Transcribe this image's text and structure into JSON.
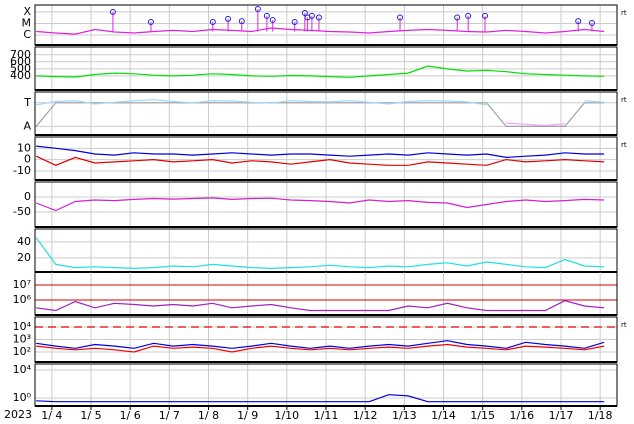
{
  "chart_data": {
    "type": "panels",
    "xlabel": "2023",
    "x": [
      3.6,
      4.1,
      4.6,
      5.1,
      5.6,
      6.1,
      6.6,
      7.1,
      7.6,
      8.1,
      8.6,
      9.1,
      9.6,
      10.1,
      10.6,
      11.1,
      11.6,
      12.1,
      12.6,
      13.1,
      13.6,
      14.1,
      14.6,
      15.1,
      15.6,
      16.1,
      16.6,
      17.1,
      17.6,
      18.1
    ],
    "xlim": [
      3.57,
      18.43
    ],
    "xticks": [
      {
        "value": 4,
        "label": "1/ 4"
      },
      {
        "value": 5,
        "label": "1/ 5"
      },
      {
        "value": 6,
        "label": "1/ 6"
      },
      {
        "value": 7,
        "label": "1/ 7"
      },
      {
        "value": 8,
        "label": "1/ 8"
      },
      {
        "value": 9,
        "label": "1/ 9"
      },
      {
        "value": 10,
        "label": "1/10"
      },
      {
        "value": 11,
        "label": "1/11"
      },
      {
        "value": 12,
        "label": "1/12"
      },
      {
        "value": 13,
        "label": "1/13"
      },
      {
        "value": 14,
        "label": "1/14"
      },
      {
        "value": 15,
        "label": "1/15"
      },
      {
        "value": 16,
        "label": "1/16"
      },
      {
        "value": 17,
        "label": "1/17"
      },
      {
        "value": 18,
        "label": "1/18"
      }
    ],
    "grid": true,
    "panels": [
      {
        "type": "line",
        "log": true,
        "ylim": [
          1.35e-07,
          0.0004
        ],
        "yticks": [
          {
            "value": 0.0001,
            "label": "X"
          },
          {
            "value": 1e-05,
            "label": "M"
          },
          {
            "value": 1e-06,
            "label": "C"
          }
        ],
        "note": "rt",
        "series": [
          {
            "color": "#e020e0",
            "values": [
              2e-06,
              1.5e-06,
              1.2e-06,
              3e-06,
              1.8e-06,
              1.5e-06,
              2e-06,
              2.5e-06,
              2e-06,
              3e-06,
              2.5e-06,
              2e-06,
              4e-06,
              3e-06,
              2.5e-06,
              2e-06,
              1.8e-06,
              1.5e-06,
              2e-06,
              2.5e-06,
              3e-06,
              2.5e-06,
              2e-06,
              1.8e-06,
              2.5e-06,
              2e-06,
              1.5e-06,
              2e-06,
              3e-06,
              2e-06
            ]
          }
        ],
        "events": {
          "color": "#2020e0",
          "x": [
            5.56,
            6.53,
            8.11,
            8.5,
            8.85,
            9.26,
            9.49,
            9.64,
            10.2,
            10.46,
            10.53,
            10.64,
            10.82,
            12.89,
            14.35,
            14.63,
            15.06,
            17.44,
            17.79
          ],
          "values": [
            0.0001,
            1.35e-05,
            1.35e-05,
            2.5e-05,
            1.6e-05,
            0.00018,
            4.5e-05,
            2e-05,
            1.35e-05,
            8e-05,
            3.3e-05,
            4.5e-05,
            3.3e-05,
            3.3e-05,
            3.3e-05,
            4.5e-05,
            4.5e-05,
            1.6e-05,
            1.1e-05
          ]
        }
      },
      {
        "type": "line",
        "log": false,
        "ylim": [
          200,
          810
        ],
        "yticks": [
          400,
          500,
          600,
          700
        ],
        "series": [
          {
            "color": "#00e000",
            "values": [
              400,
              390,
              385,
              420,
              440,
              430,
              410,
              400,
              410,
              430,
              420,
              400,
              395,
              405,
              400,
              390,
              380,
              400,
              420,
              440,
              540,
              500,
              470,
              480,
              460,
              430,
              420,
              410,
              400,
              395
            ]
          }
        ]
      },
      {
        "type": "line",
        "log": false,
        "ylim": [
          0,
          1
        ],
        "yticks": [
          {
            "value": 0.75,
            "label": "T"
          },
          {
            "value": 0.2,
            "label": "A"
          }
        ],
        "note": "rt",
        "series": [
          {
            "color": "#a0a0a0",
            "values": [
              0.2,
              0.75,
              0.75,
              0.75,
              0.75,
              0.75,
              0.75,
              0.75,
              0.75,
              0.75,
              0.75,
              0.75,
              0.75,
              0.75,
              0.75,
              0.75,
              0.75,
              0.75,
              0.75,
              0.75,
              0.75,
              0.75,
              0.75,
              0.75,
              0.2,
              0.2,
              0.2,
              0.2,
              0.75,
              0.75
            ]
          },
          {
            "color": "#a0d8ff",
            "values": [
              0.7,
              0.78,
              0.8,
              0.72,
              0.76,
              0.8,
              0.82,
              0.78,
              0.75,
              0.8,
              0.79,
              0.76,
              0.74,
              0.8,
              0.78,
              0.77,
              0.8,
              0.76,
              0.72,
              0.78,
              0.8,
              0.79,
              0.77,
              0.7,
              null,
              null,
              null,
              null,
              0.8,
              0.76
            ]
          },
          {
            "color": "#f0a0f0",
            "values": [
              0.25,
              null,
              null,
              null,
              null,
              null,
              null,
              null,
              null,
              null,
              null,
              null,
              null,
              null,
              null,
              null,
              null,
              null,
              null,
              null,
              null,
              null,
              null,
              null,
              0.28,
              0.25,
              0.22,
              0.26,
              null,
              0.25
            ]
          }
        ]
      },
      {
        "type": "line",
        "log": false,
        "ylim": [
          -18,
          20
        ],
        "yticks": [
          10,
          0,
          -10
        ],
        "note": "rt",
        "series": [
          {
            "color": "#0000e0",
            "values": [
              12,
              10,
              8,
              5,
              4,
              6,
              5,
              5,
              4,
              5,
              6,
              5,
              4,
              5,
              5,
              4,
              3,
              4,
              5,
              4,
              6,
              5,
              4,
              5,
              2,
              3,
              4,
              6,
              5,
              5
            ]
          },
          {
            "color": "#e00000",
            "values": [
              3,
              -5,
              2,
              -3,
              -2,
              -1,
              0,
              -2,
              -1,
              0,
              -3,
              -1,
              -2,
              -4,
              -2,
              0,
              -3,
              -4,
              -5,
              -5,
              -2,
              -3,
              -4,
              -5,
              0,
              -2,
              -1,
              0,
              -1,
              -2
            ]
          }
        ]
      },
      {
        "type": "line",
        "log": false,
        "ylim": [
          -100,
          50
        ],
        "yticks": [
          0,
          -50
        ],
        "series": [
          {
            "color": "#d020d0",
            "values": [
              -20,
              -45,
              -15,
              -10,
              -12,
              -8,
              -5,
              -7,
              -5,
              -3,
              -8,
              -5,
              -4,
              -10,
              -12,
              -15,
              -20,
              -10,
              -15,
              -12,
              -18,
              -20,
              -35,
              -25,
              -15,
              -10,
              -15,
              -12,
              -8,
              -10
            ]
          }
        ]
      },
      {
        "type": "line",
        "log": false,
        "ylim": [
          2.5,
          56
        ],
        "yticks": [
          40,
          20
        ],
        "series": [
          {
            "color": "#20e0e0",
            "values": [
              45,
              12,
              8,
              9,
              8,
              7,
              8,
              10,
              9,
              12,
              10,
              8,
              7,
              8,
              9,
              11,
              9,
              8,
              10,
              9,
              12,
              14,
              10,
              15,
              12,
              9,
              8,
              18,
              10,
              9
            ]
          }
        ]
      },
      {
        "type": "line",
        "log": true,
        "ylim": [
          100000.0,
          74000000.0
        ],
        "yticks": [
          {
            "value": 10000000.0,
            "label": "10⁷"
          },
          {
            "value": 1000000.0,
            "label": "10⁶"
          }
        ],
        "hlines": {
          "color": "#d00000",
          "values": [
            10000000.0,
            1000000.0
          ]
        },
        "series": [
          {
            "color": "#a020c0",
            "values": [
              300000.0,
              200000.0,
              800000.0,
              300000.0,
              600000.0,
              500000.0,
              400000.0,
              500000.0,
              400000.0,
              600000.0,
              300000.0,
              400000.0,
              500000.0,
              300000.0,
              200000.0,
              200000.0,
              200000.0,
              200000.0,
              200000.0,
              400000.0,
              300000.0,
              600000.0,
              300000.0,
              200000.0,
              200000.0,
              200000.0,
              200000.0,
              900000.0,
              400000.0,
              300000.0
            ]
          }
        ]
      },
      {
        "type": "line",
        "log": true,
        "ylim": [
          16,
          63000.0
        ],
        "yticks": [
          {
            "value": 10000.0,
            "label": "10⁴"
          },
          {
            "value": 1000.0,
            "label": "10³"
          },
          {
            "value": 100,
            "label": "10²"
          }
        ],
        "note": "rt",
        "dashed": {
          "color": "#e00000",
          "values": [
            10000.0
          ]
        },
        "series": [
          {
            "color": "#0000e0",
            "values": [
              500,
              300,
              200,
              400,
              300,
              200,
              500,
              300,
              400,
              300,
              200,
              300,
              500,
              300,
              200,
              300,
              200,
              300,
              400,
              300,
              500,
              800,
              400,
              300,
              200,
              600,
              400,
              300,
              200,
              600
            ]
          },
          {
            "color": "#f00000",
            "values": [
              300,
              200,
              150,
              200,
              150,
              100,
              300,
              200,
              250,
              200,
              100,
              200,
              300,
              200,
              150,
              200,
              150,
              200,
              250,
              200,
              300,
              400,
              250,
              200,
              150,
              300,
              250,
              200,
              150,
              300
            ]
          }
        ]
      },
      {
        "type": "line",
        "log": true,
        "ylim": [
          0.072,
          72000.0
        ],
        "yticks": [
          {
            "value": 10000.0,
            "label": "10⁴"
          },
          {
            "value": 1,
            "label": "10⁰"
          }
        ],
        "series": [
          {
            "color": "#0000e0",
            "values": [
              0.4,
              0.3,
              0.3,
              0.3,
              0.3,
              0.3,
              0.3,
              0.3,
              0.3,
              0.3,
              0.3,
              0.3,
              0.3,
              0.3,
              0.3,
              0.3,
              0.3,
              0.3,
              3,
              2,
              0.3,
              0.3,
              0.3,
              0.3,
              0.3,
              0.3,
              0.3,
              0.3,
              0.3,
              0.3
            ]
          }
        ]
      }
    ]
  }
}
